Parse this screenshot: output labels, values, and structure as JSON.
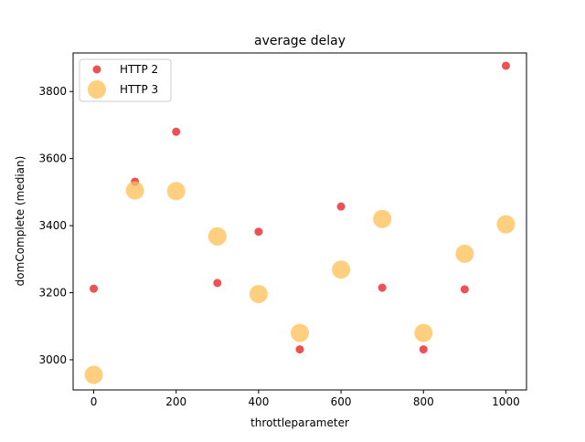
{
  "chart_data": {
    "type": "scatter",
    "title": "average delay",
    "xlabel": "throttleparameter",
    "ylabel": "domComplete (median)",
    "xlim": [
      -50,
      1050
    ],
    "ylim": [
      2910,
      3915
    ],
    "xticks": [
      0,
      200,
      400,
      600,
      800,
      1000
    ],
    "yticks": [
      3000,
      3200,
      3400,
      3600,
      3800
    ],
    "grid": false,
    "legend_position": "upper-left",
    "series": [
      {
        "name": "HTTP 2",
        "color": "#e8171c",
        "marker_size": "small",
        "x": [
          0,
          100,
          200,
          300,
          400,
          500,
          600,
          700,
          800,
          900,
          1000
        ],
        "y": [
          3212,
          3531,
          3680,
          3229,
          3382,
          3031,
          3457,
          3215,
          3031,
          3210,
          3877
        ]
      },
      {
        "name": "HTTP 3",
        "color": "#fdbf54",
        "marker_size": "large",
        "x": [
          0,
          100,
          200,
          300,
          400,
          500,
          600,
          700,
          800,
          900,
          1000
        ],
        "y": [
          2955,
          3505,
          3503,
          3368,
          3196,
          3080,
          3269,
          3420,
          3080,
          3316,
          3404
        ]
      }
    ]
  }
}
